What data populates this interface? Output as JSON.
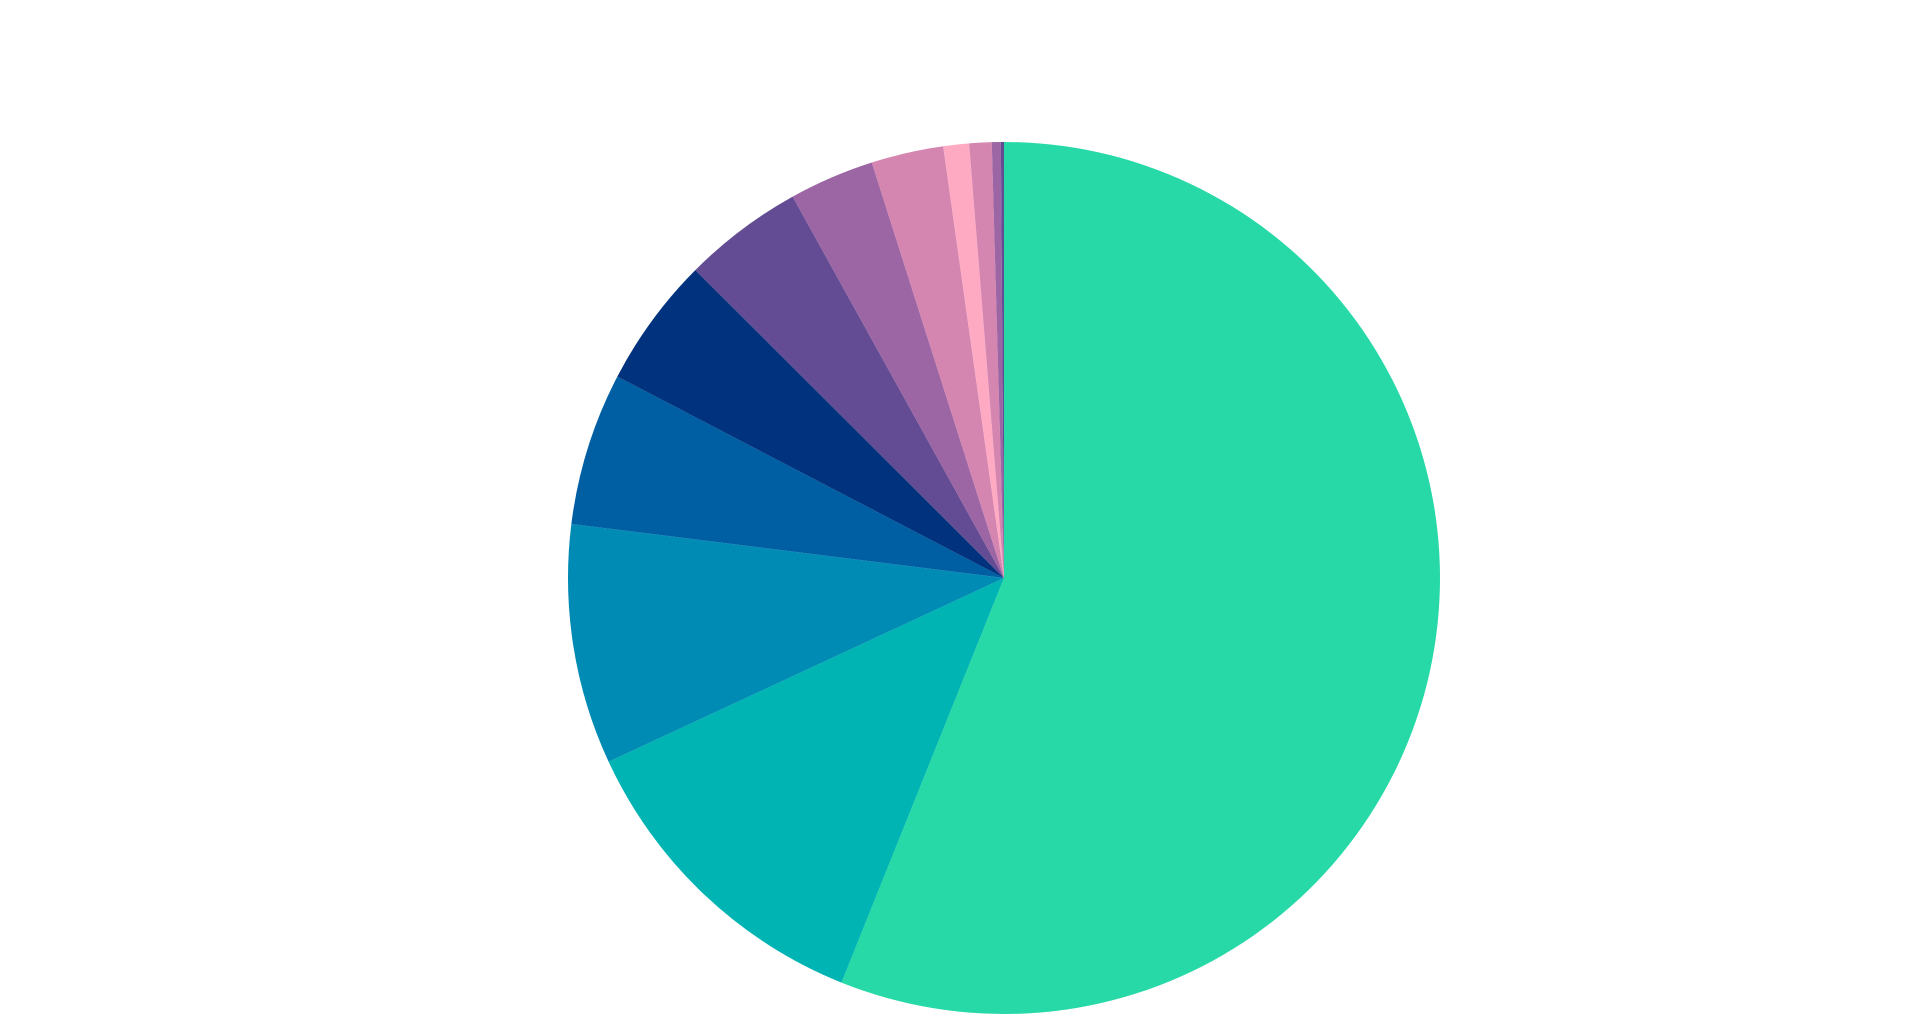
{
  "chart_data": {
    "type": "pie",
    "start_angle": "12 o'clock",
    "direction": "clockwise",
    "legend": "none",
    "title": "",
    "slices": [
      {
        "value": 58.9,
        "color": "#27D9A7"
      },
      {
        "value": 12.6,
        "color": "#00B4B3"
      },
      {
        "value": 9.35,
        "color": "#008BB4"
      },
      {
        "value": 5.95,
        "color": "#005FA3"
      },
      {
        "value": 5.08,
        "color": "#00327D"
      },
      {
        "value": 4.69,
        "color": "#634C93"
      },
      {
        "value": 3.31,
        "color": "#9C66A4"
      },
      {
        "value": 2.81,
        "color": "#D485B0"
      },
      {
        "value": 1.0,
        "color": "#FFAAC3"
      },
      {
        "value": 0.87,
        "color": "#D485B0"
      },
      {
        "value": 0.35,
        "color": "#9C66A4"
      },
      {
        "value": 0.12,
        "color": "#634C93"
      }
    ]
  }
}
